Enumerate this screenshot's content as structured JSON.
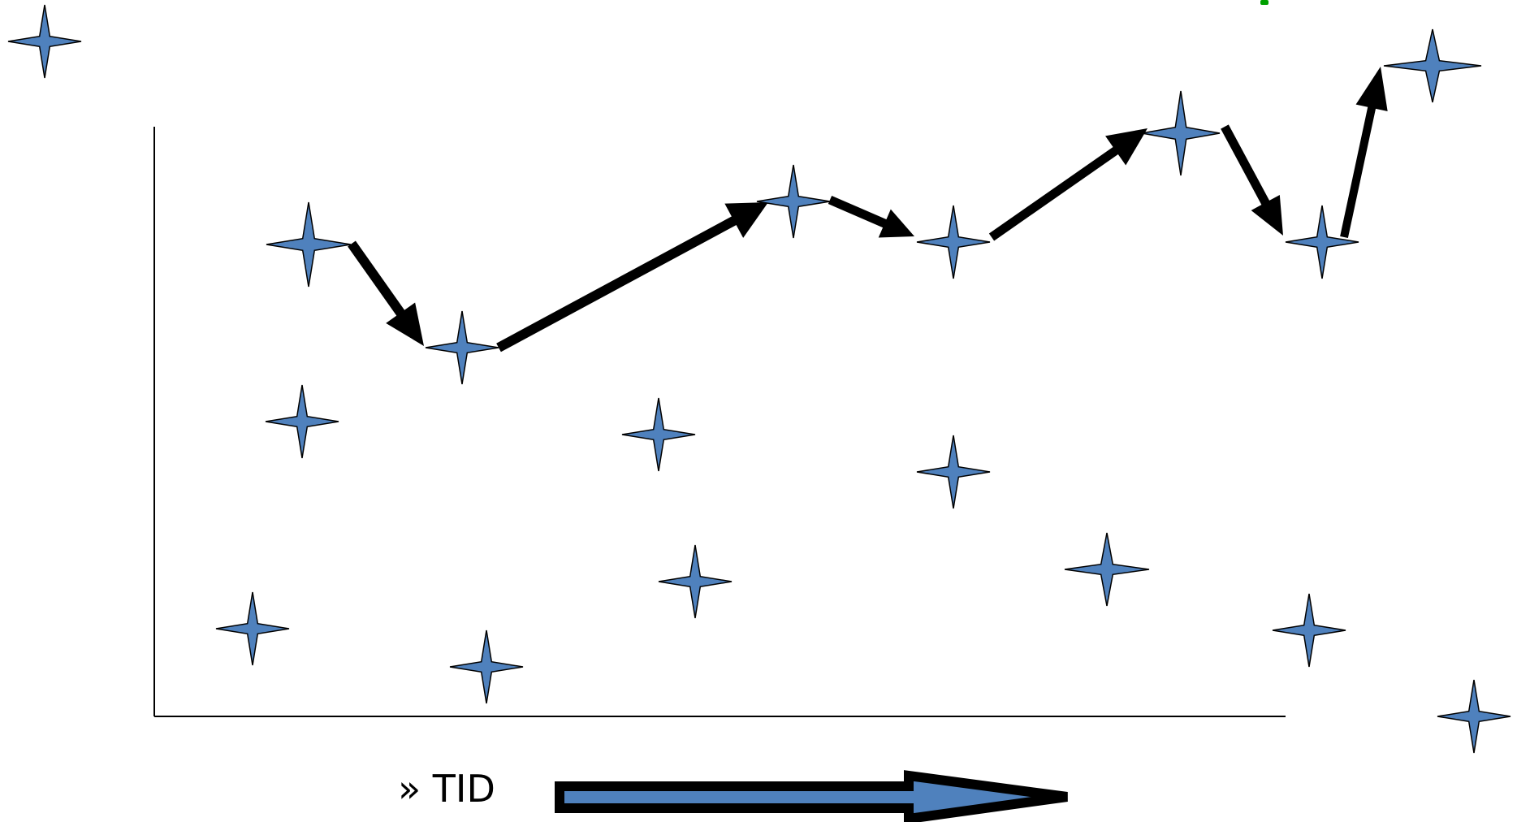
{
  "label": {
    "prefix": "»",
    "text": "TID"
  },
  "colors": {
    "star_fill": "#4f81bd",
    "star_stroke": "#000000",
    "line": "#000000",
    "green_mark": "#00a000"
  },
  "icons": {
    "star": "four-point-star-icon",
    "arrow": "black-arrow-icon",
    "time_arrow": "outlined-block-arrow-icon"
  }
}
